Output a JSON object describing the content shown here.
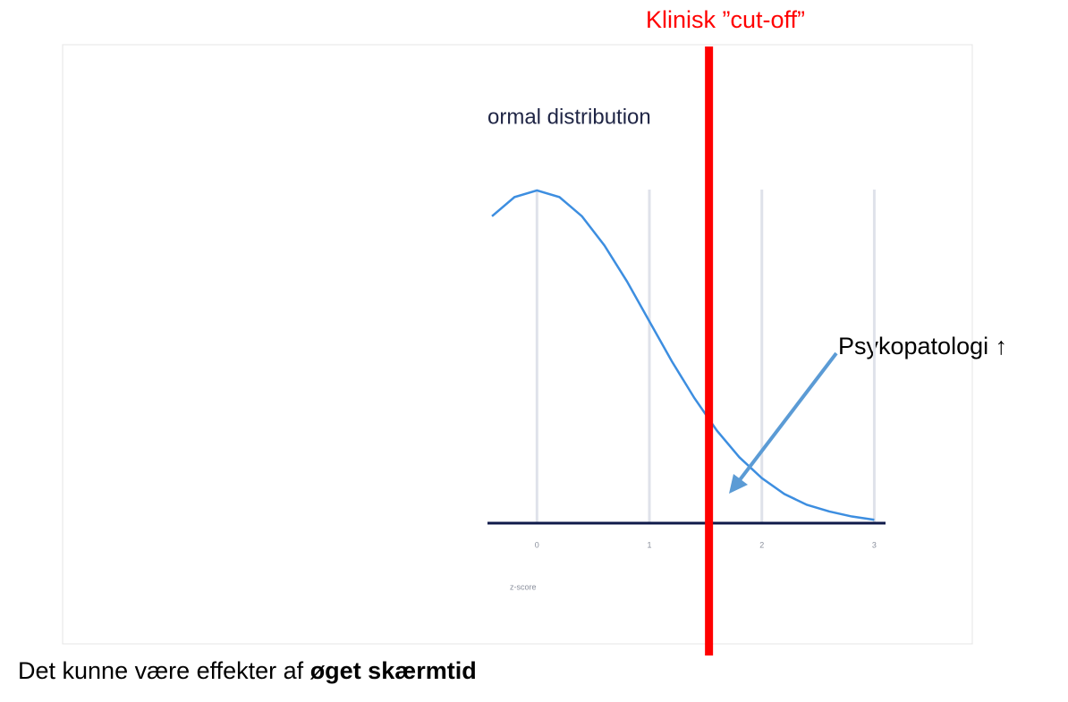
{
  "chart_data": {
    "type": "line",
    "title": "ormal distribution",
    "x_label": "z-score",
    "x": [
      -0.4,
      -0.2,
      0,
      0.2,
      0.4,
      0.6,
      0.8,
      1.0,
      1.2,
      1.4,
      1.6,
      1.8,
      2.0,
      2.2,
      2.4,
      2.6,
      2.8,
      3.0
    ],
    "values": [
      0.368,
      0.391,
      0.399,
      0.391,
      0.368,
      0.333,
      0.29,
      0.242,
      0.194,
      0.15,
      0.111,
      0.079,
      0.054,
      0.035,
      0.022,
      0.014,
      0.008,
      0.004
    ],
    "color": "#3d8ee0",
    "xlim": [
      -0.44,
      3.1
    ],
    "xticks": [
      0,
      1,
      2,
      3
    ],
    "ylim": [
      0,
      0.4
    ],
    "grid": true,
    "cutoff": 1.53,
    "cutoff_color": "#ff0000",
    "annotations": {
      "cutoff_label": "Klinisk ”cut-off”",
      "arrow_label": "Psykopatologi ↑"
    }
  },
  "caption": {
    "text": "Det kunne være effekter af ",
    "bold": "øget skærmtid"
  }
}
